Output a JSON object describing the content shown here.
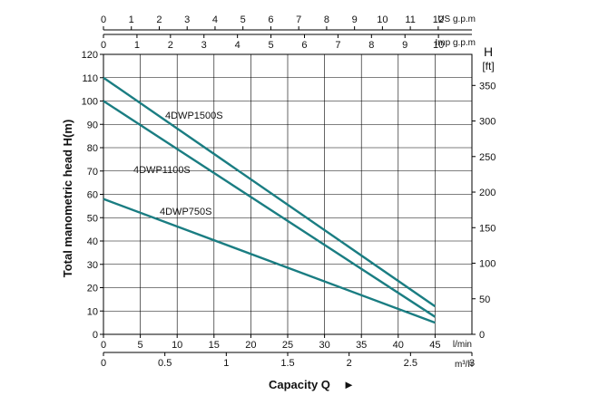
{
  "chart_data": {
    "type": "line",
    "title": "Capacity Q",
    "title_arrow": "►",
    "ylabel": "Total manometric head H(m)",
    "x": [
      0,
      45
    ],
    "series": [
      {
        "name": "4DWP1500S",
        "color": "#1a7d82",
        "values": [
          110,
          12
        ]
      },
      {
        "name": "4DWP1100S",
        "color": "#1a7d82",
        "values": [
          100,
          7.5
        ]
      },
      {
        "name": "4DWP750S",
        "color": "#1a7d82",
        "values": [
          58,
          5
        ]
      }
    ],
    "xlim": [
      0,
      50
    ],
    "ylim": [
      0,
      120
    ],
    "grid": true,
    "axes": {
      "lmin": {
        "unit": "l/min",
        "ticks": [
          0,
          5,
          10,
          15,
          20,
          25,
          30,
          35,
          40,
          45
        ]
      },
      "m3h": {
        "unit": "m³/h",
        "ticks": [
          "0",
          "0.5",
          "1",
          "1.5",
          "2",
          "2.5",
          "3"
        ],
        "values": [
          0,
          0.5,
          1,
          1.5,
          2,
          2.5,
          3
        ]
      },
      "usgpm": {
        "unit": "US g.p.m",
        "ticks": [
          "0",
          "1",
          "2",
          "3",
          "4",
          "5",
          "6",
          "7",
          "8",
          "9",
          "10",
          "11",
          "12"
        ]
      },
      "impgpm": {
        "unit": "Imp g.p.m",
        "ticks": [
          "0",
          "1",
          "2",
          "3",
          "4",
          "5",
          "6",
          "7",
          "8",
          "9",
          "10"
        ]
      },
      "left": {
        "ticks": [
          0,
          10,
          20,
          30,
          40,
          50,
          60,
          70,
          80,
          90,
          100,
          110,
          120
        ]
      },
      "right": {
        "title": "H",
        "unit": "[ft]",
        "ticks": [
          0,
          50,
          100,
          150,
          200,
          250,
          300,
          350
        ]
      }
    }
  }
}
